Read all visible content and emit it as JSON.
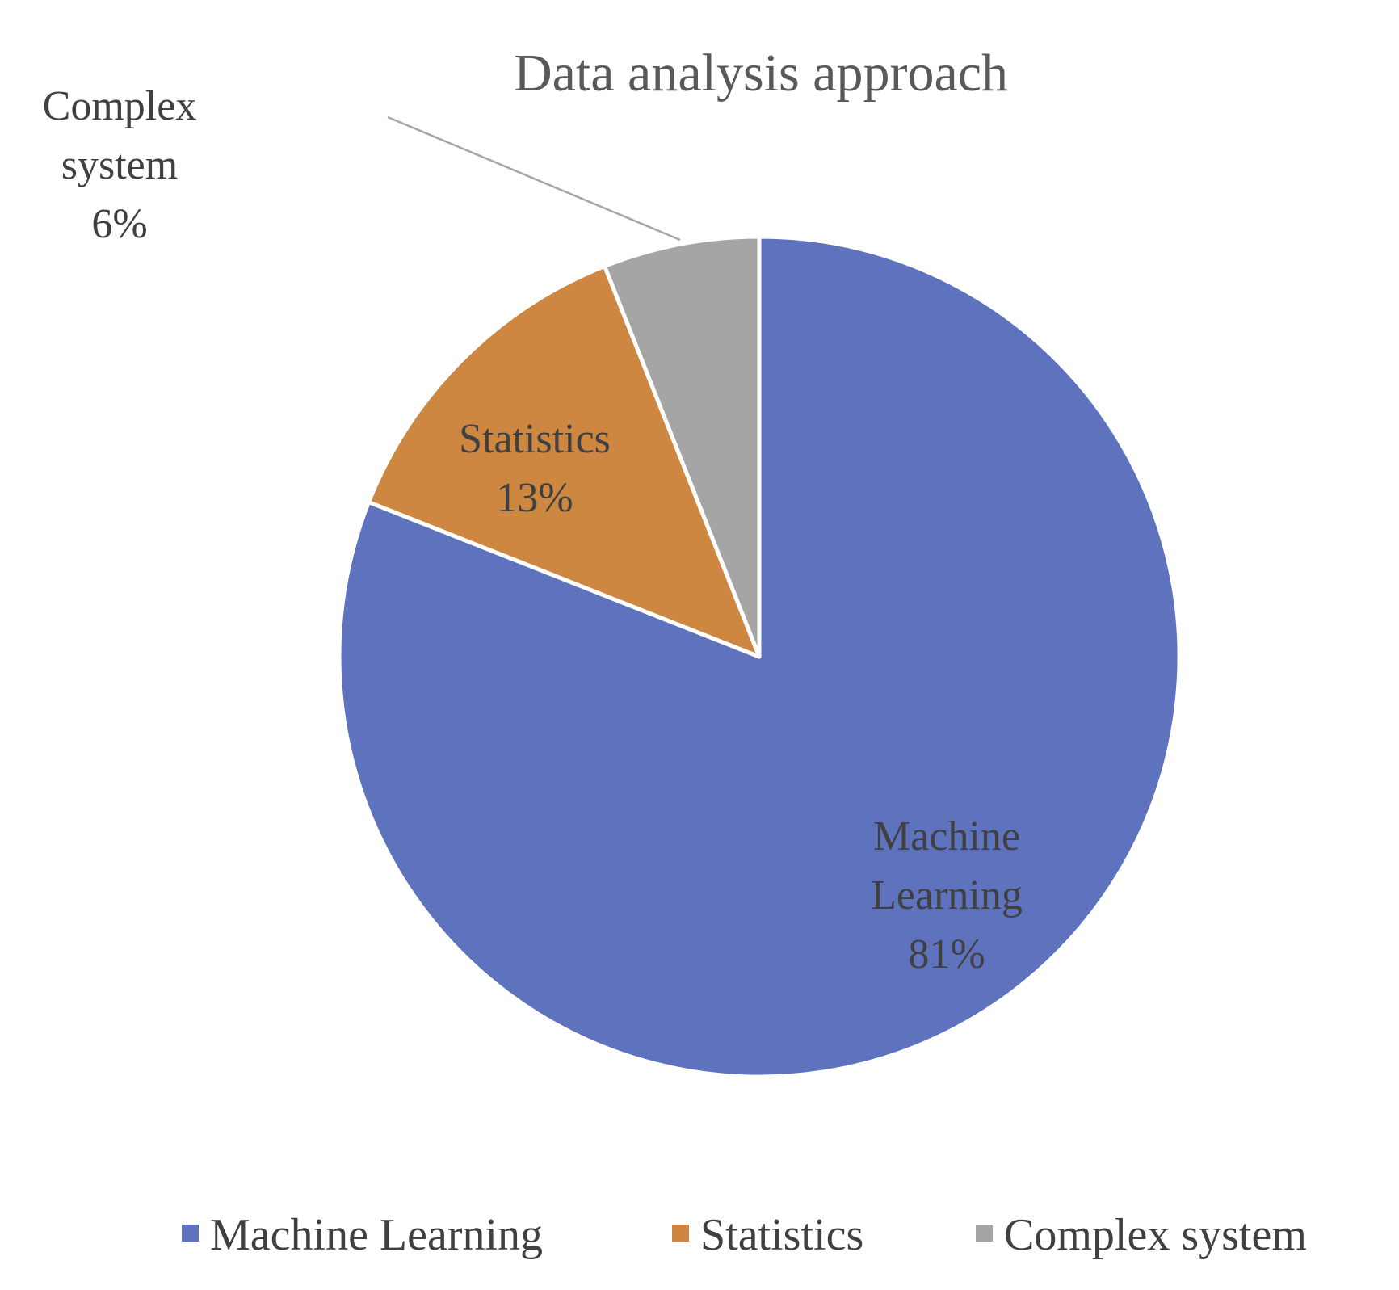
{
  "chart_data": {
    "type": "pie",
    "title": "Data analysis approach",
    "slices": [
      {
        "label": "Machine Learning",
        "data_label": [
          "Machine",
          "Learning"
        ],
        "value": 81,
        "value_label": "81%",
        "color": "#5E72BE"
      },
      {
        "label": "Statistics",
        "data_label": [
          "Statistics"
        ],
        "value": 13,
        "value_label": "13%",
        "color": "#CD8741"
      },
      {
        "label": "Complex system",
        "data_label": [
          "Complex",
          "system"
        ],
        "value": 6,
        "value_label": "6%",
        "color": "#A5A5A5"
      }
    ],
    "legend_position": "bottom"
  }
}
